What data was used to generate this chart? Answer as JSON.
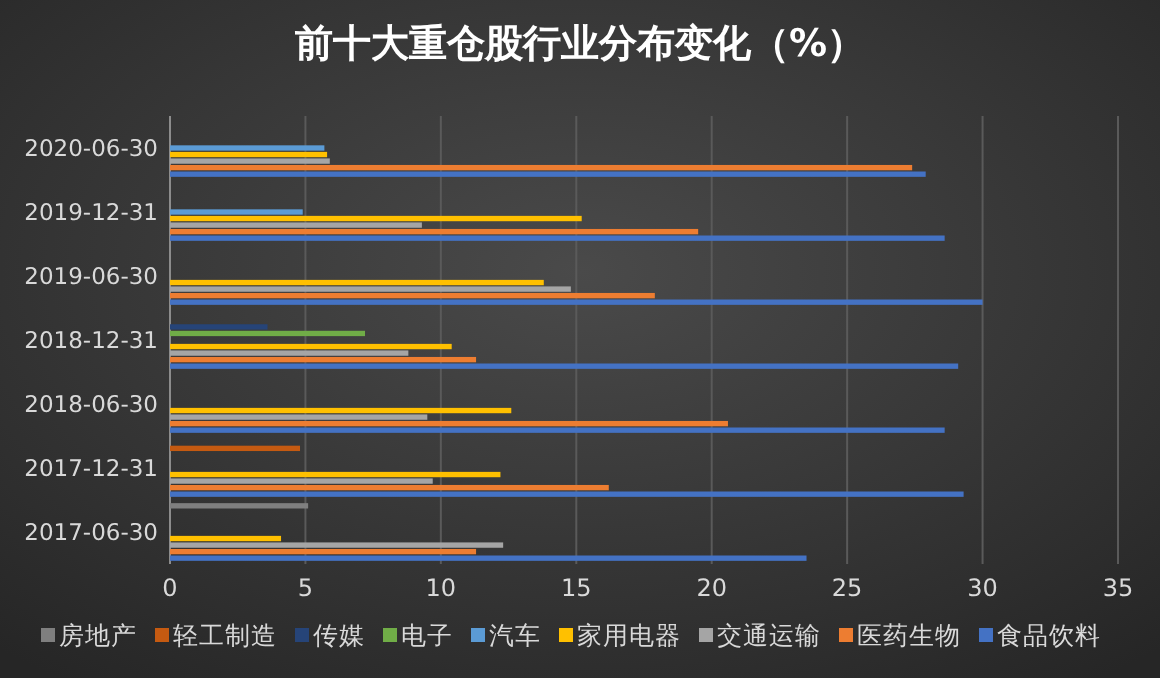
{
  "chart_data": {
    "type": "bar",
    "orientation": "horizontal",
    "title": "前十大重仓股行业分布变化（%）",
    "categories": [
      "2020-06-30",
      "2019-12-31",
      "2019-06-30",
      "2018-12-31",
      "2018-06-30",
      "2017-12-31",
      "2017-06-30"
    ],
    "series": [
      {
        "name": "房地产",
        "color": "#7f7f7f",
        "values": [
          null,
          null,
          null,
          null,
          null,
          null,
          5.1
        ]
      },
      {
        "name": "轻工制造",
        "color": "#c55a11",
        "values": [
          null,
          null,
          null,
          null,
          null,
          4.8,
          null
        ]
      },
      {
        "name": "传媒",
        "color": "#264478",
        "values": [
          null,
          null,
          null,
          3.6,
          null,
          null,
          null
        ]
      },
      {
        "name": "电子",
        "color": "#70ad47",
        "values": [
          null,
          null,
          null,
          7.2,
          null,
          null,
          null
        ]
      },
      {
        "name": "汽车",
        "color": "#5b9bd5",
        "values": [
          5.7,
          4.9,
          null,
          null,
          null,
          null,
          null
        ]
      },
      {
        "name": "家用电器",
        "color": "#ffc000",
        "values": [
          5.8,
          15.2,
          13.8,
          10.4,
          12.6,
          12.2,
          4.1
        ]
      },
      {
        "name": "交通运输",
        "color": "#a5a5a5",
        "values": [
          5.9,
          9.3,
          14.8,
          8.8,
          9.5,
          9.7,
          12.3
        ]
      },
      {
        "name": "医药生物",
        "color": "#ed7d31",
        "values": [
          27.4,
          19.5,
          17.9,
          11.3,
          20.6,
          16.2,
          11.3
        ]
      },
      {
        "name": "食品饮料",
        "color": "#4472c4",
        "values": [
          27.9,
          28.6,
          30.0,
          29.1,
          28.6,
          29.3,
          23.5
        ]
      }
    ],
    "xlim": [
      0,
      35
    ],
    "xticks": [
      0,
      5,
      10,
      15,
      20,
      25,
      30,
      35
    ],
    "grid": "x",
    "legend": "bottom"
  }
}
